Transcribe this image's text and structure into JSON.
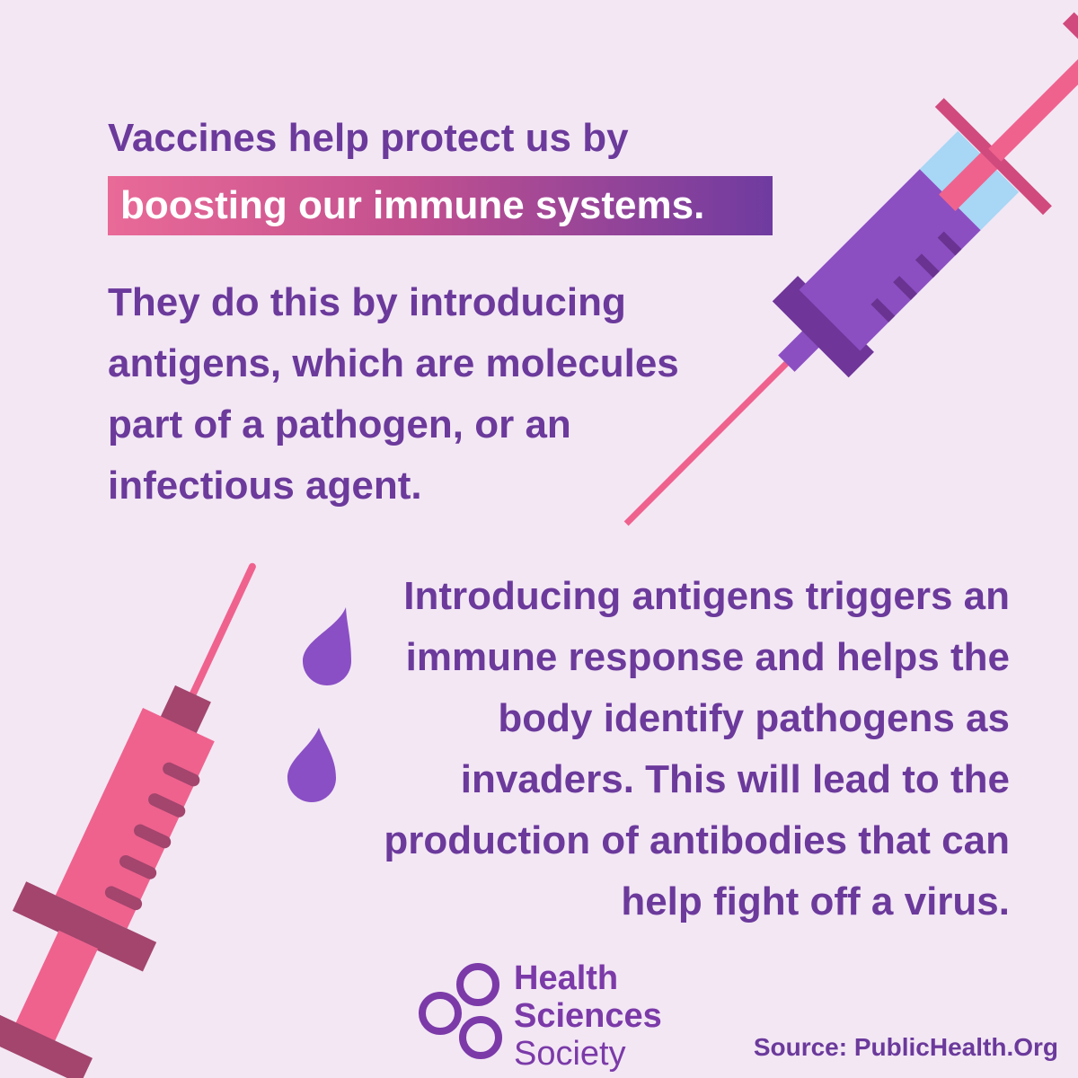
{
  "headline": {
    "line1": "Vaccines help protect us by",
    "highlight": "boosting our immune systems."
  },
  "paragraph1": "They do this by introducing antigens, which are molecules part of a pathogen, or an infectious agent.",
  "paragraph2": "Introducing antigens triggers an immune response and helps the body identify pathogens as invaders. This will lead to the production of antibodies that can help fight off a virus.",
  "logo": {
    "line1": "Health",
    "line2": "Sciences",
    "line3": "Society"
  },
  "source": "Source: PublicHealth.Org",
  "colors": {
    "background": "#f3e7f4",
    "text_purple": "#6b3a9b",
    "syringe_pink": "#ef628e",
    "syringe_purple": "#8b4fc2",
    "drop_purple": "#8a4fc4"
  }
}
